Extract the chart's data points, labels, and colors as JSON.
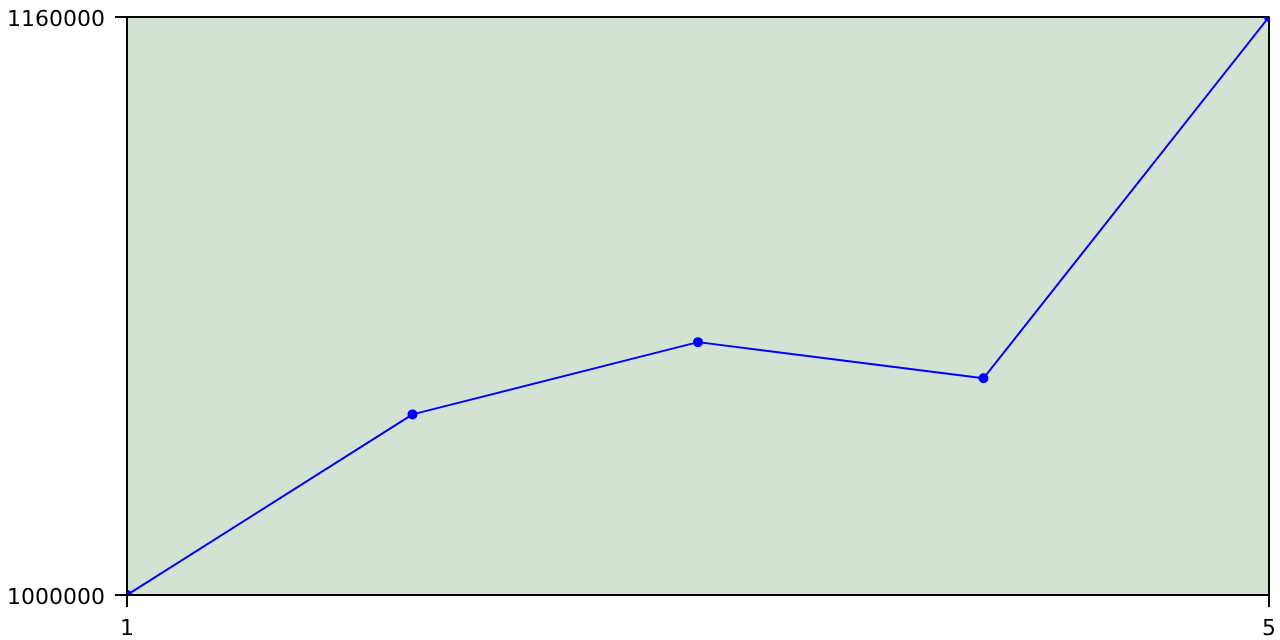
{
  "chart_data": {
    "type": "line",
    "x": [
      1,
      2,
      3,
      4,
      5
    ],
    "series": [
      {
        "color": "#0000ff",
        "values": [
          1000000,
          1050000,
          1070000,
          1060000,
          1160000
        ]
      }
    ],
    "xlim": [
      1,
      5
    ],
    "xticks": [
      1,
      5
    ],
    "ylim": [
      1000000,
      1160000
    ],
    "yticks": [
      1000000,
      1160000
    ],
    "marker": "circle",
    "line_style": "solid"
  }
}
